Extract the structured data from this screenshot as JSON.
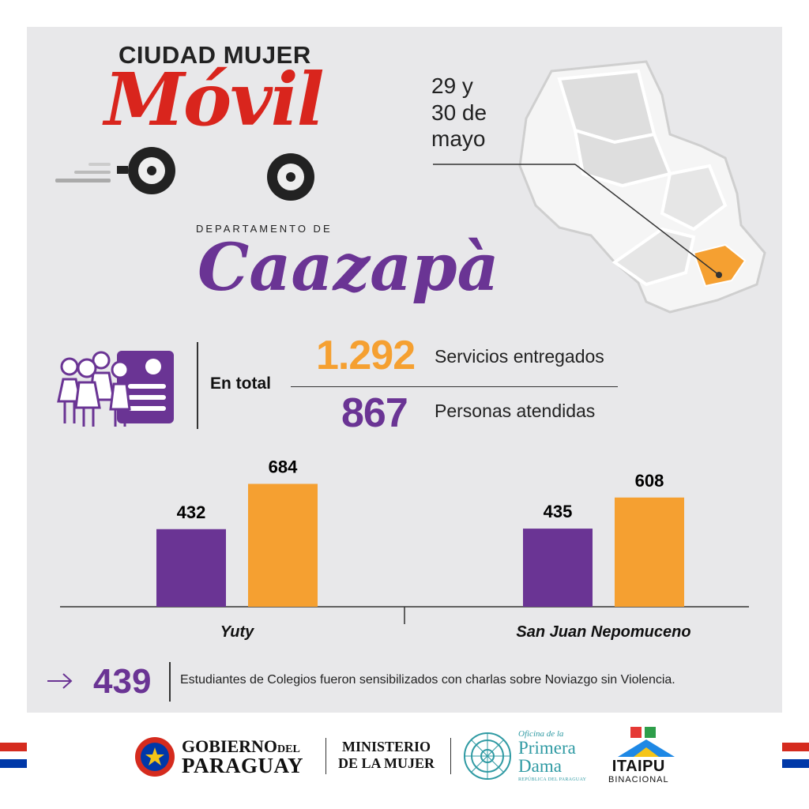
{
  "brand": {
    "line1_light": "CIUDAD",
    "line1_bold": "MUJER",
    "script": "Móvil"
  },
  "department": {
    "prefix": "DEPARTAMENTO DE",
    "name": "Caazapà"
  },
  "date": {
    "line1": "29 y",
    "line2": "30 de",
    "line3": "mayo"
  },
  "totals": {
    "label": "En total",
    "services_value": "1.292",
    "services_label": "Servicios entregados",
    "people_value": "867",
    "people_label": "Personas atendidas"
  },
  "chart_data": {
    "type": "bar",
    "categories": [
      "Yuty",
      "San Juan Nepomuceno"
    ],
    "series": [
      {
        "values": [
          432,
          435
        ],
        "color": "#6a3494"
      },
      {
        "values": [
          684,
          608
        ],
        "color": "#f5a031"
      }
    ],
    "ylim": [
      0,
      800
    ],
    "grid": false,
    "data_labels": true
  },
  "students": {
    "value": "439",
    "text": "Estudiantes de Colegios fueron sensibilizados con charlas sobre Noviazgo sin Violencia."
  },
  "footer": {
    "gov_line1": "GOBIERNO",
    "gov_line1_small": "DEL",
    "gov_line2": "PARAGUAY",
    "ministry_line1": "MINISTERIO",
    "ministry_line2": "DE LA MUJER",
    "pd_small": "Oficina de la",
    "pd_line1": "Primera",
    "pd_line2": "Dama",
    "pd_republic": "REPÚBLICA DEL PARAGUAY",
    "itaipu": "ITAIPU",
    "itaipu_sub": "BINACIONAL"
  },
  "colors": {
    "purple": "#6a3494",
    "orange": "#f5a031",
    "red": "#d9251d",
    "panel": "#e8e8ea"
  },
  "icons": [
    "arrow-right-icon",
    "people-id-card-icon",
    "truck-wheels-icon",
    "paraguay-map-icon",
    "paraguay-flag-icon"
  ]
}
